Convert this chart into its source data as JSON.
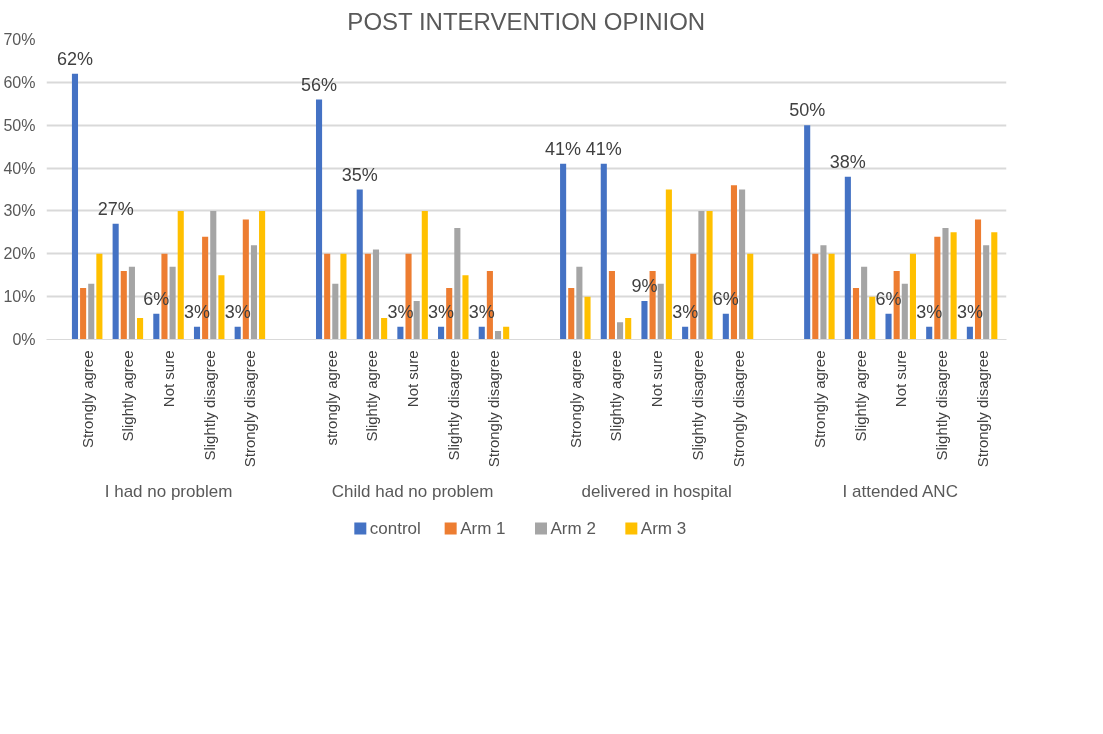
{
  "chart_data": {
    "type": "bar",
    "title": "POST INTERVENTION OPINION",
    "categories": [
      "Strongly agree",
      "Slightly agree",
      "Not sure",
      "Slightly disagree",
      "Strongly disagree",
      "strongly agree",
      "Slightly agree",
      "Not sure",
      "Slightly disagree",
      "Strongly disagree",
      "Strongly agree",
      "Slightly agree",
      "Not sure",
      "Slightly disagree",
      "Strongly disagree",
      "Strongly agree",
      "Slightly agree",
      "Not sure",
      "Slightly disagree",
      "Strongly disagree"
    ],
    "annotations": [
      "I had no problem",
      "Child had no problem",
      "delivered in hospital",
      "I attended ANC"
    ],
    "series": [
      {
        "name": "control",
        "color": "#4472c4",
        "values": [
          62,
          27,
          6,
          3,
          3,
          56,
          35,
          3,
          3,
          3,
          41,
          41,
          9,
          3,
          6,
          50,
          38,
          6,
          3,
          3
        ],
        "value_labels": [
          "62%",
          "27%",
          "6%",
          "3%",
          "3%",
          "56%",
          "35%",
          "3%",
          "3%",
          "3%",
          "41%",
          "41%",
          "9%",
          "3%",
          "6%",
          "50%",
          "38%",
          "6%",
          "3%",
          "3%"
        ]
      },
      {
        "name": "Arm 1",
        "color": "#ed7d31",
        "values": [
          12,
          16,
          20,
          24,
          28,
          20,
          20,
          20,
          12,
          16,
          12,
          16,
          16,
          20,
          36,
          20,
          12,
          16,
          24,
          28
        ]
      },
      {
        "name": "Arm 2",
        "color": "#a5a5a5",
        "values": [
          13,
          17,
          17,
          30,
          22,
          13,
          21,
          9,
          26,
          2,
          17,
          4,
          13,
          30,
          35,
          22,
          17,
          13,
          26,
          22
        ]
      },
      {
        "name": "Arm 3",
        "color": "#ffc000",
        "values": [
          20,
          5,
          30,
          15,
          30,
          20,
          5,
          30,
          15,
          3,
          10,
          5,
          35,
          30,
          20,
          20,
          10,
          20,
          25,
          25
        ]
      }
    ],
    "ylim": [
      0,
      70
    ],
    "yticks": [
      {
        "value": 0,
        "label": "0%"
      },
      {
        "value": 10,
        "label": "10%"
      },
      {
        "value": 20,
        "label": "20%"
      },
      {
        "value": 30,
        "label": "30%"
      },
      {
        "value": 40,
        "label": "40%"
      },
      {
        "value": 50,
        "label": "50%"
      },
      {
        "value": 60,
        "label": "60%"
      },
      {
        "value": 70,
        "label": "70%"
      }
    ],
    "grid": "y",
    "legend": "bottom"
  }
}
